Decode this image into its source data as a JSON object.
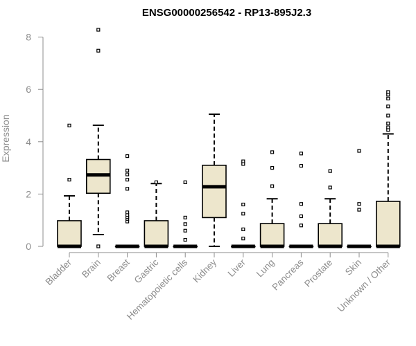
{
  "chart_data": {
    "type": "boxplot",
    "title": "ENSG00000256542 - RP13-895J2.3",
    "xlabel": "",
    "ylabel": "Expression",
    "ylim": [
      0,
      8.4
    ],
    "yticks": [
      0,
      2,
      4,
      6,
      8
    ],
    "grid": false,
    "legend": "none",
    "colors": {
      "box_fill": "#ede6cc",
      "stroke": "#000000",
      "axis": "#8c8c8c"
    },
    "categories": [
      "Bladder",
      "Brain",
      "Breast",
      "Gastric",
      "Hematopoietic cells",
      "Kidney",
      "Liver",
      "Lung",
      "Pancreas",
      "Prostate",
      "Skin",
      "Unknown / Other"
    ],
    "boxes": [
      {
        "q1": 0,
        "median": 0,
        "q3": 0.98,
        "whisker_low": 0,
        "whisker_high": 1.93,
        "outliers": [
          2.55,
          4.62
        ]
      },
      {
        "q1": 2.03,
        "median": 2.73,
        "q3": 3.32,
        "whisker_low": 0.45,
        "whisker_high": 4.63,
        "outliers": [
          0.0,
          7.48,
          8.28
        ]
      },
      {
        "q1": 0,
        "median": 0,
        "q3": 0,
        "whisker_low": 0,
        "whisker_high": 0,
        "outliers": [
          0.95,
          1.05,
          1.12,
          1.2,
          1.3,
          2.2,
          2.55,
          2.75,
          2.9,
          3.45
        ]
      },
      {
        "q1": 0,
        "median": 0,
        "q3": 0.98,
        "whisker_low": 0,
        "whisker_high": 2.4,
        "outliers": [
          2.45
        ]
      },
      {
        "q1": 0,
        "median": 0,
        "q3": 0,
        "whisker_low": 0,
        "whisker_high": 0,
        "outliers": [
          0.25,
          0.6,
          0.85,
          1.1,
          2.45
        ]
      },
      {
        "q1": 1.1,
        "median": 2.28,
        "q3": 3.1,
        "whisker_low": 0,
        "whisker_high": 5.05,
        "outliers": []
      },
      {
        "q1": 0,
        "median": 0,
        "q3": 0,
        "whisker_low": 0,
        "whisker_high": 0,
        "outliers": [
          0.3,
          0.65,
          1.25,
          1.6,
          3.15,
          3.25
        ]
      },
      {
        "q1": 0,
        "median": 0,
        "q3": 0.87,
        "whisker_low": 0,
        "whisker_high": 1.82,
        "outliers": [
          2.3,
          3.0,
          3.6
        ]
      },
      {
        "q1": 0,
        "median": 0,
        "q3": 0,
        "whisker_low": 0,
        "whisker_high": 0,
        "outliers": [
          0.8,
          1.15,
          1.62,
          3.08,
          3.55
        ]
      },
      {
        "q1": 0,
        "median": 0,
        "q3": 0.87,
        "whisker_low": 0,
        "whisker_high": 1.82,
        "outliers": [
          2.25,
          2.88
        ]
      },
      {
        "q1": 0,
        "median": 0,
        "q3": 0,
        "whisker_low": 0,
        "whisker_high": 0,
        "outliers": [
          1.4,
          1.62,
          3.65
        ]
      },
      {
        "q1": 0,
        "median": 0,
        "q3": 1.72,
        "whisker_low": 0,
        "whisker_high": 4.3,
        "outliers": [
          4.45,
          4.55,
          4.7,
          5.0,
          5.35,
          5.65,
          5.8,
          5.9
        ]
      }
    ]
  }
}
